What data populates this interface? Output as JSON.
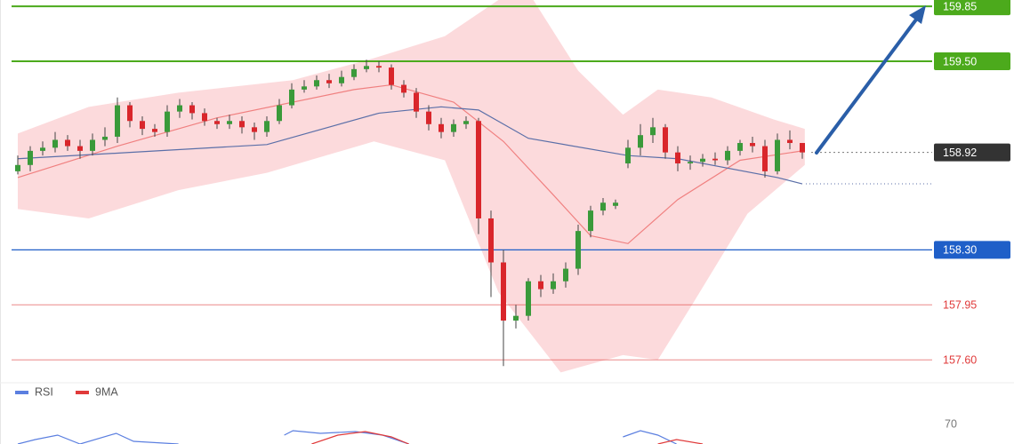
{
  "chart_data": [
    {
      "type": "candlestick",
      "ylim": [
        157.46,
        159.89
      ],
      "up_color": "#3a9a3a",
      "down_color": "#d9262b",
      "wick_color": "#444444",
      "open": [
        158.8,
        158.84,
        158.93,
        158.95,
        159.0,
        158.96,
        158.93,
        159.0,
        159.02,
        159.22,
        159.12,
        159.07,
        159.05,
        159.18,
        159.22,
        159.17,
        159.12,
        159.1,
        159.12,
        159.08,
        159.05,
        159.12,
        159.22,
        159.32,
        159.34,
        159.38,
        159.36,
        159.4,
        159.45,
        159.47,
        159.46,
        159.35,
        159.3,
        159.18,
        159.1,
        159.05,
        159.1,
        159.12,
        158.5,
        158.22,
        157.85,
        157.88,
        158.1,
        158.05,
        158.1,
        158.18,
        158.42,
        158.55,
        158.58,
        158.85,
        158.95,
        159.03,
        159.08,
        158.92,
        158.85,
        158.86,
        158.88,
        158.87,
        158.93,
        158.98,
        158.96,
        158.8,
        159.0,
        158.98
      ],
      "high": [
        158.9,
        158.96,
        158.99,
        159.05,
        159.03,
        159.0,
        159.04,
        159.08,
        159.27,
        159.24,
        159.15,
        159.1,
        159.22,
        159.26,
        159.24,
        159.2,
        159.14,
        159.16,
        159.15,
        159.11,
        159.15,
        159.26,
        159.36,
        159.38,
        159.41,
        159.42,
        159.44,
        159.48,
        159.51,
        159.5,
        159.48,
        159.38,
        159.33,
        159.22,
        159.14,
        159.13,
        159.15,
        159.14,
        158.55,
        158.3,
        157.95,
        158.12,
        158.14,
        158.15,
        158.22,
        158.46,
        158.58,
        158.63,
        158.62,
        159.0,
        159.1,
        159.14,
        159.1,
        158.96,
        158.9,
        158.91,
        158.92,
        158.96,
        159.0,
        159.02,
        159.0,
        159.04,
        159.06,
        158.98
      ],
      "low": [
        158.78,
        158.8,
        158.9,
        158.92,
        158.93,
        158.88,
        158.9,
        158.96,
        158.98,
        159.08,
        159.03,
        159.02,
        159.02,
        159.14,
        159.13,
        159.09,
        159.07,
        159.07,
        159.04,
        159.0,
        159.02,
        159.1,
        159.2,
        159.3,
        159.32,
        159.33,
        159.34,
        159.38,
        159.43,
        159.43,
        159.32,
        159.27,
        159.14,
        159.06,
        159.01,
        159.02,
        159.07,
        158.4,
        158.0,
        157.56,
        157.8,
        157.85,
        158.0,
        158.02,
        158.06,
        158.14,
        158.38,
        158.52,
        158.56,
        158.82,
        158.9,
        158.98,
        158.88,
        158.8,
        158.81,
        158.83,
        158.84,
        158.84,
        158.9,
        158.92,
        158.76,
        158.78,
        158.94,
        158.88
      ],
      "close": [
        158.84,
        158.93,
        158.95,
        159.0,
        158.96,
        158.93,
        159.0,
        159.02,
        159.22,
        159.12,
        159.07,
        159.05,
        159.18,
        159.22,
        159.17,
        159.12,
        159.1,
        159.12,
        159.08,
        159.05,
        159.12,
        159.22,
        159.32,
        159.34,
        159.38,
        159.36,
        159.4,
        159.45,
        159.47,
        159.46,
        159.35,
        159.3,
        159.18,
        159.1,
        159.05,
        159.1,
        159.12,
        158.5,
        158.22,
        157.85,
        157.88,
        158.1,
        158.05,
        158.1,
        158.18,
        158.42,
        158.55,
        158.6,
        158.6,
        158.95,
        159.03,
        159.08,
        158.92,
        158.85,
        158.86,
        158.88,
        158.87,
        158.93,
        158.98,
        158.96,
        158.8,
        159.0,
        158.98,
        158.92
      ],
      "band": {
        "color": "#fbd3d6",
        "upper": {
          "x": [
            0,
            5.7,
            12.9,
            22.1,
            28.6,
            34.3,
            38.6,
            41.4,
            45,
            48.6,
            51.4,
            55.7,
            60.7,
            63.2
          ],
          "values": [
            159.04,
            159.21,
            159.3,
            159.38,
            159.52,
            159.66,
            159.89,
            159.89,
            159.44,
            159.16,
            159.32,
            159.27,
            159.13,
            159.07
          ]
        },
        "lower": {
          "x": [
            0,
            5.7,
            12.9,
            20,
            28.6,
            34.3,
            38.6,
            43.6,
            48.6,
            51.4,
            54.3,
            58.6,
            63.2
          ],
          "values": [
            158.56,
            158.5,
            158.68,
            158.79,
            158.99,
            158.87,
            158.03,
            157.52,
            157.63,
            157.6,
            157.97,
            158.53,
            158.84
          ]
        }
      },
      "lines": [
        {
          "color": "#f08080",
          "x": [
            0,
            8,
            16,
            27,
            30,
            35,
            39,
            43,
            46,
            49,
            53,
            58,
            63
          ],
          "values": [
            158.76,
            158.96,
            159.14,
            159.32,
            159.35,
            159.24,
            158.99,
            158.65,
            158.39,
            158.34,
            158.62,
            158.87,
            158.93
          ]
        },
        {
          "color": "#5b6fa8",
          "x": [
            0,
            9,
            20,
            29,
            34,
            37,
            41,
            49,
            53,
            61,
            63
          ],
          "values": [
            158.88,
            158.92,
            158.97,
            159.17,
            159.21,
            159.19,
            159.01,
            158.9,
            158.88,
            158.76,
            158.72
          ]
        }
      ],
      "levels": [
        {
          "value": 159.85,
          "label": "159.85",
          "color": "#4caa1c",
          "line": "solid",
          "filled": true
        },
        {
          "value": 159.5,
          "label": "159.50",
          "color": "#4caa1c",
          "line": "solid",
          "filled": true
        },
        {
          "value": 158.92,
          "label": "158.92",
          "color": "#333333",
          "line": "dotted",
          "filled": true
        },
        {
          "value": 158.3,
          "label": "158.30",
          "color": "#1f5fc8",
          "line": "solid",
          "filled": true
        },
        {
          "value": 157.95,
          "label": "157.95",
          "color": "#e03a3a",
          "line": "thin",
          "filled": false
        },
        {
          "value": 157.6,
          "label": "157.60",
          "color": "#e03a3a",
          "line": "thin",
          "filled": false
        }
      ]
    },
    {
      "type": "line",
      "ylim": [
        64.5,
        80
      ],
      "yticks": [
        70
      ],
      "series": [
        {
          "name": "RSI",
          "color": "#5b7fe0",
          "x": [
            0,
            1.4,
            3.2,
            5,
            7.9,
            9.3,
            12.9,
            null,
            21.4,
            22.1,
            24.3,
            27.1,
            29.3,
            31.4,
            null,
            48.6,
            50,
            51.4,
            52.9
          ],
          "values": [
            64.5,
            65.75,
            67,
            64.5,
            67.5,
            65.25,
            64.5,
            null,
            67,
            68.25,
            67.5,
            68,
            67,
            64.5,
            null,
            66.5,
            68.25,
            67,
            64.5
          ]
        },
        {
          "name": "9MA",
          "color": "#e03a3a",
          "x": [
            23.6,
            25.7,
            27.9,
            30,
            31.4,
            null,
            51.4,
            52.9,
            55
          ],
          "values": [
            64.5,
            67,
            68,
            66.5,
            64.5,
            null,
            64.5,
            65.75,
            64.5
          ]
        }
      ]
    }
  ]
}
